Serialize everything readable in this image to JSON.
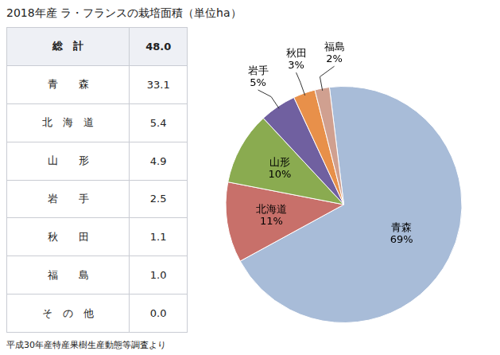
{
  "chart_data": [
    {
      "type": "table",
      "title": "2018年産 ラ・フランスの栽培面積（単位ha）",
      "header": [
        "総　計",
        "48.0"
      ],
      "rows": [
        [
          "青　　森",
          "33.1"
        ],
        [
          "北　海　道",
          "5.4"
        ],
        [
          "山　　形",
          "4.9"
        ],
        [
          "岩　　手",
          "2.5"
        ],
        [
          "秋　　田",
          "1.1"
        ],
        [
          "福　　島",
          "1.0"
        ],
        [
          "そ　の　他",
          "0.0"
        ]
      ],
      "annotations": [
        "平成30年産特産果樹生産動態等調査より"
      ]
    },
    {
      "type": "pie",
      "categories": [
        "青森",
        "北海道",
        "山形",
        "岩手",
        "秋田",
        "福島",
        null
      ],
      "values": [
        69,
        11,
        10,
        5,
        3,
        2,
        0
      ],
      "value_labels": [
        "69%",
        "11%",
        "10%",
        "5%",
        "3%",
        "2%",
        null
      ],
      "colors": [
        "#a8bcd8",
        "#c8706a",
        "#8aab50",
        "#7060a0",
        "#e8904a",
        "#d0a090",
        "#ffffff"
      ],
      "data_labels": true
    }
  ]
}
